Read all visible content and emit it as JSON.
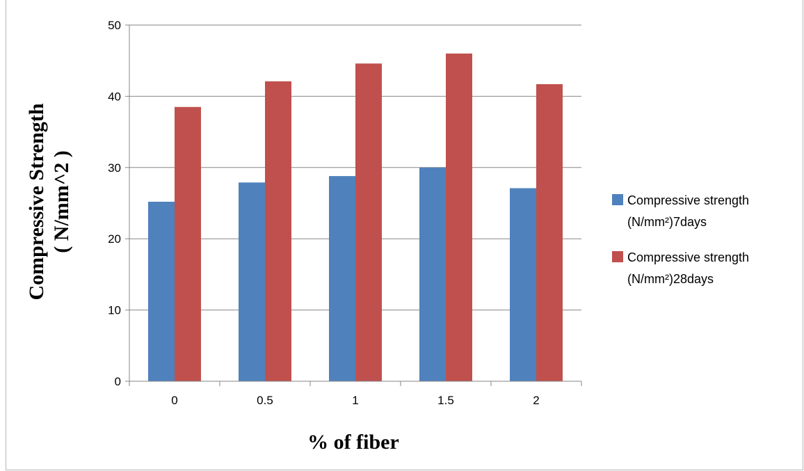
{
  "chart_data": {
    "type": "bar",
    "categories": [
      "0",
      "0.5",
      "1",
      "1.5",
      "2"
    ],
    "series": [
      {
        "name": "Compressive strength (N/mm²)7days",
        "name_lines": [
          "Compressive strength",
          "(N/mm²)7days"
        ],
        "color": "#4f81bd",
        "values": [
          25.2,
          27.9,
          28.8,
          30.0,
          27.1
        ]
      },
      {
        "name": "Compressive strength (N/mm²)28days",
        "name_lines": [
          "Compressive strength",
          "(N/mm²)28days"
        ],
        "color": "#c0504d",
        "values": [
          38.5,
          42.1,
          44.6,
          46.0,
          41.7
        ]
      }
    ],
    "xlabel": "% of fiber",
    "ylabel_lines": [
      "Compressive Strength",
      "( N/mm^2 )"
    ],
    "ylim": [
      0,
      50
    ],
    "yticks": [
      "0",
      "10",
      "20",
      "30",
      "40",
      "50"
    ],
    "grid": true,
    "legend_position": "right"
  }
}
